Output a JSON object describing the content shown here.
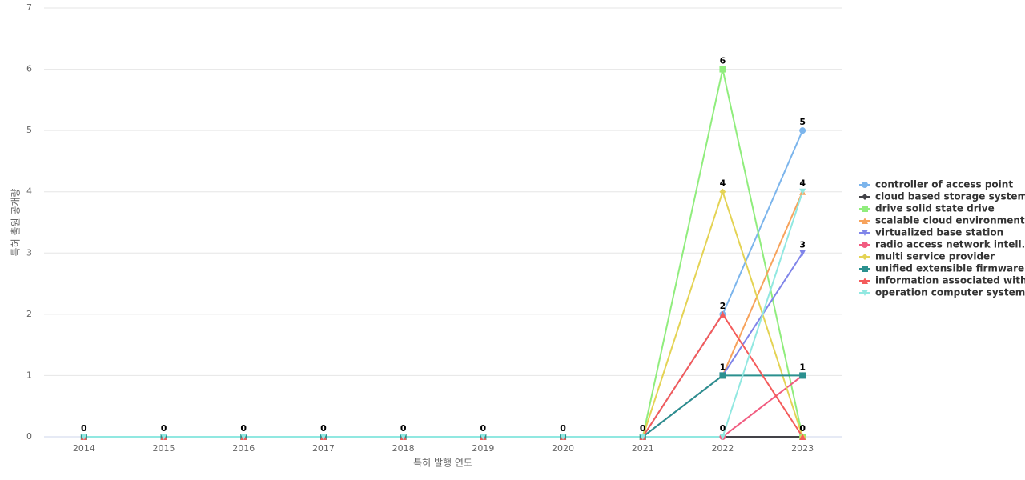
{
  "chart_data": {
    "type": "line",
    "x_label": "특허 발행 연도",
    "y_label": "특허 출원 공개량",
    "categories": [
      "2014",
      "2015",
      "2016",
      "2017",
      "2018",
      "2019",
      "2020",
      "2021",
      "2022",
      "2023"
    ],
    "ylim": [
      0,
      7
    ],
    "yticks": [
      0,
      1,
      2,
      3,
      4,
      5,
      6,
      7
    ],
    "grid": true,
    "series": [
      {
        "name": "controller of access point",
        "color": "#7cb5ec",
        "values": [
          0,
          0,
          0,
          0,
          0,
          0,
          0,
          0,
          2,
          5
        ]
      },
      {
        "name": "cloud based storage system",
        "color": "#434348",
        "values": [
          0,
          0,
          0,
          0,
          0,
          0,
          0,
          0,
          0,
          0
        ]
      },
      {
        "name": "drive solid state drive",
        "color": "#90ed7d",
        "values": [
          0,
          0,
          0,
          0,
          0,
          0,
          0,
          0,
          6,
          0
        ]
      },
      {
        "name": "scalable cloud environment",
        "color": "#f7a35c",
        "values": [
          0,
          0,
          0,
          0,
          0,
          0,
          0,
          0,
          1,
          4
        ]
      },
      {
        "name": "virtualized base station",
        "color": "#8085e9",
        "values": [
          0,
          0,
          0,
          0,
          0,
          0,
          0,
          0,
          1,
          3
        ]
      },
      {
        "name": "radio access network intell...",
        "color": "#f15c80",
        "values": [
          0,
          0,
          0,
          0,
          0,
          0,
          0,
          0,
          0,
          1
        ]
      },
      {
        "name": "multi service provider",
        "color": "#e4d354",
        "values": [
          0,
          0,
          0,
          0,
          0,
          0,
          0,
          0,
          4,
          0
        ]
      },
      {
        "name": "unified extensible firmware...",
        "color": "#2b908f",
        "values": [
          0,
          0,
          0,
          0,
          0,
          0,
          0,
          0,
          1,
          1
        ]
      },
      {
        "name": "information associated with...",
        "color": "#f45b5b",
        "values": [
          0,
          0,
          0,
          0,
          0,
          0,
          0,
          0,
          2,
          0
        ]
      },
      {
        "name": "operation computer system",
        "color": "#91e8e1",
        "values": [
          0,
          0,
          0,
          0,
          0,
          0,
          0,
          0,
          0,
          4
        ]
      }
    ]
  }
}
